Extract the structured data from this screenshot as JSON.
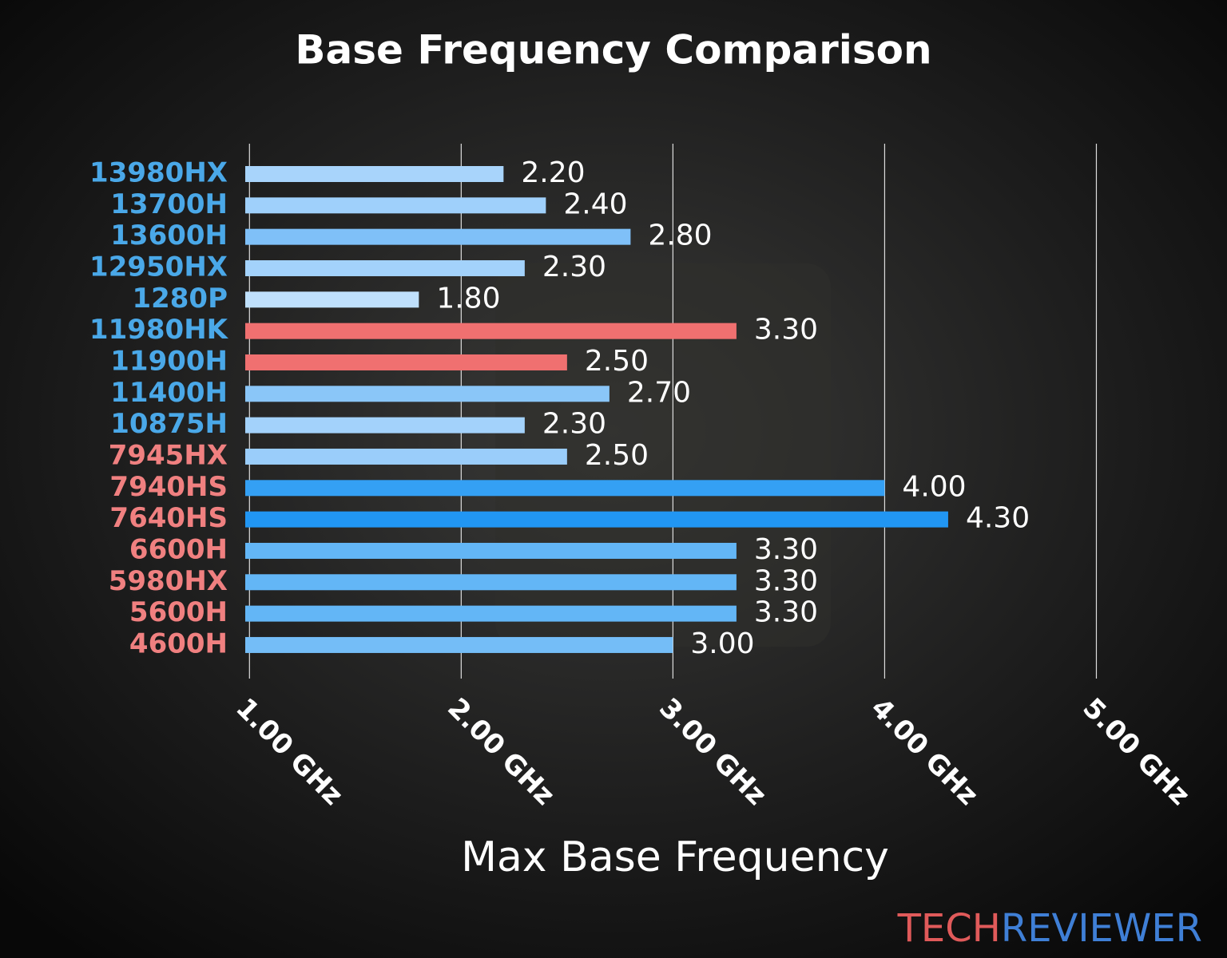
{
  "chart_data": {
    "type": "barh",
    "title": "Base Frequency Comparison",
    "xlabel": "Max Base Frequency",
    "categories": [
      "13980HX",
      "13700H",
      "13600H",
      "12950HX",
      "1280P",
      "11980HK",
      "11900H",
      "11400H",
      "10875H",
      "7945HX",
      "7940HS",
      "7640HS",
      "6600H",
      "5980HX",
      "5600H",
      "4600H"
    ],
    "values": [
      2.2,
      2.4,
      2.8,
      2.3,
      1.8,
      3.3,
      2.5,
      2.7,
      2.3,
      2.5,
      4.0,
      4.3,
      3.3,
      3.3,
      3.3,
      3.0
    ],
    "value_labels": [
      "2.20",
      "2.40",
      "2.80",
      "2.30",
      "1.80",
      "3.30",
      "2.50",
      "2.70",
      "2.30",
      "2.50",
      "4.00",
      "4.30",
      "3.30",
      "3.30",
      "3.30",
      "3.00"
    ],
    "colors": [
      "#a8d4fb",
      "#9fd0fb",
      "#7fc0f8",
      "#a3d2fb",
      "#bfe0fc",
      "#f07070",
      "#f07070",
      "#8ac6f8",
      "#a3d2fb",
      "#9acdfa",
      "#34a0f4",
      "#2196f3",
      "#63b6f6",
      "#63b6f6",
      "#63b6f6",
      "#74bdf7"
    ],
    "label_colors": [
      "#4aa8e8",
      "#4aa8e8",
      "#4aa8e8",
      "#4aa8e8",
      "#4aa8e8",
      "#4aa8e8",
      "#4aa8e8",
      "#4aa8e8",
      "#4aa8e8",
      "#f08080",
      "#f08080",
      "#f08080",
      "#f08080",
      "#f08080",
      "#f08080",
      "#f08080"
    ],
    "xlim": [
      0.98,
      5.5
    ],
    "xticks": [
      {
        "value": 1,
        "label": "1.00 GHz"
      },
      {
        "value": 2,
        "label": "2.00 GHz"
      },
      {
        "value": 3,
        "label": "3.00 GHz"
      },
      {
        "value": 4,
        "label": "4.00 GHz"
      },
      {
        "value": 5,
        "label": "5.00 GHz"
      }
    ],
    "grid": true
  },
  "watermark": {
    "part1": "TECH",
    "part2": "REVIEWER"
  }
}
